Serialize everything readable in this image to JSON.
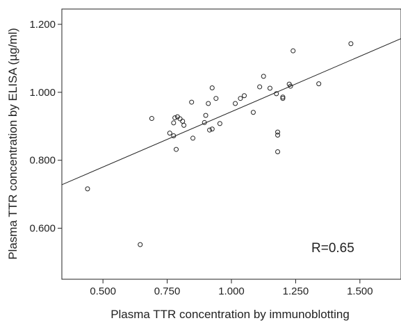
{
  "chart_data": {
    "type": "scatter",
    "title": "",
    "xlabel": "Plasma TTR concentration by immunoblotting",
    "ylabel": "Plasma TTR concentration by ELISA (µg/ml)",
    "xlim": [
      0.34,
      1.66
    ],
    "ylim": [
      0.45,
      1.245
    ],
    "xticks": [
      0.5,
      0.75,
      1.0,
      1.25,
      1.5
    ],
    "xtick_labels": [
      "0.500",
      "0.750",
      "1.000",
      "1.250",
      "1.500"
    ],
    "yticks": [
      0.6,
      0.8,
      1.0,
      1.2
    ],
    "ytick_labels": [
      "0.600",
      "0.800",
      "1.000",
      "1.200"
    ],
    "grid": false,
    "points": [
      {
        "x": 0.44,
        "y": 0.716
      },
      {
        "x": 0.645,
        "y": 0.552
      },
      {
        "x": 0.69,
        "y": 0.923
      },
      {
        "x": 0.76,
        "y": 0.88
      },
      {
        "x": 0.775,
        "y": 0.872
      },
      {
        "x": 0.775,
        "y": 0.91
      },
      {
        "x": 0.78,
        "y": 0.925
      },
      {
        "x": 0.785,
        "y": 0.832
      },
      {
        "x": 0.79,
        "y": 0.928
      },
      {
        "x": 0.8,
        "y": 0.922
      },
      {
        "x": 0.81,
        "y": 0.915
      },
      {
        "x": 0.815,
        "y": 0.903
      },
      {
        "x": 0.845,
        "y": 0.971
      },
      {
        "x": 0.85,
        "y": 0.865
      },
      {
        "x": 0.895,
        "y": 0.911
      },
      {
        "x": 0.9,
        "y": 0.932
      },
      {
        "x": 0.91,
        "y": 0.967
      },
      {
        "x": 0.915,
        "y": 0.889
      },
      {
        "x": 0.925,
        "y": 1.013
      },
      {
        "x": 0.925,
        "y": 0.892
      },
      {
        "x": 0.94,
        "y": 0.982
      },
      {
        "x": 0.955,
        "y": 0.908
      },
      {
        "x": 1.015,
        "y": 0.967
      },
      {
        "x": 1.035,
        "y": 0.982
      },
      {
        "x": 1.05,
        "y": 0.99
      },
      {
        "x": 1.085,
        "y": 0.941
      },
      {
        "x": 1.11,
        "y": 1.016
      },
      {
        "x": 1.125,
        "y": 1.047
      },
      {
        "x": 1.15,
        "y": 1.012
      },
      {
        "x": 1.175,
        "y": 0.996
      },
      {
        "x": 1.18,
        "y": 0.883
      },
      {
        "x": 1.18,
        "y": 0.874
      },
      {
        "x": 1.18,
        "y": 0.825
      },
      {
        "x": 1.2,
        "y": 0.986
      },
      {
        "x": 1.2,
        "y": 0.982
      },
      {
        "x": 1.225,
        "y": 1.024
      },
      {
        "x": 1.23,
        "y": 1.018
      },
      {
        "x": 1.24,
        "y": 1.122
      },
      {
        "x": 1.34,
        "y": 1.025
      },
      {
        "x": 1.465,
        "y": 1.143
      }
    ],
    "fit_line": {
      "x": [
        0.34,
        1.66
      ],
      "y": [
        0.728,
        1.158
      ]
    },
    "annotation": "R=0.65",
    "marker_color": "#222222",
    "line_color": "#222222"
  }
}
